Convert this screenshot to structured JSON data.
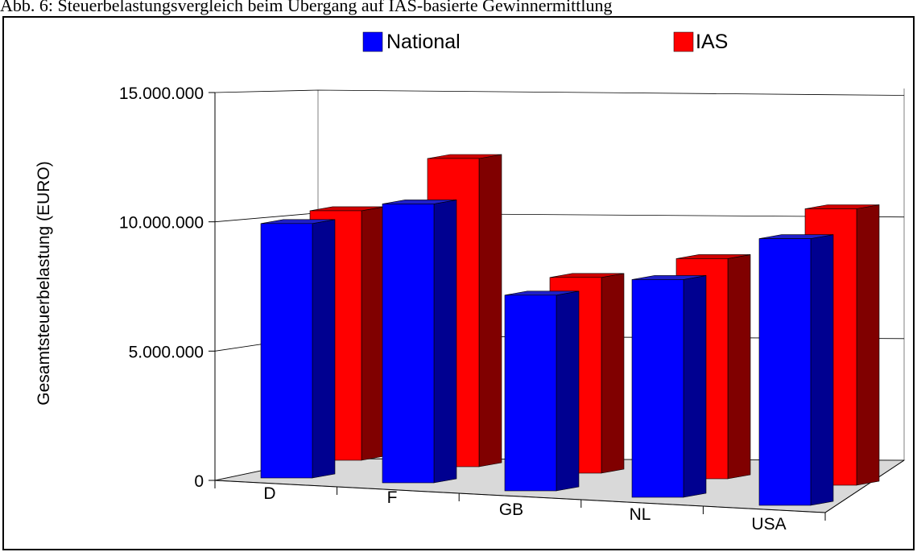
{
  "caption": "Abb. 6: Steuerbelastungsvergleich beim Übergang auf IAS-basierte Gewinnermittlung",
  "chart_data": {
    "type": "bar",
    "title": "",
    "xlabel": "",
    "ylabel": "Gesamtsteuerbelastung (EURO)",
    "ylim": [
      0,
      15000000
    ],
    "yticks": [
      0,
      5000000,
      10000000,
      15000000
    ],
    "ytick_labels": [
      "0",
      "5.000.000",
      "10.000.000",
      "15.000.000"
    ],
    "categories": [
      "D",
      "F",
      "GB",
      "NL",
      "USA"
    ],
    "series": [
      {
        "name": "National",
        "values": [
          10400000,
          11400000,
          8000000,
          8900000,
          10900000
        ],
        "color": "#0000ff"
      },
      {
        "name": "IAS",
        "values": [
          10200000,
          12600000,
          8000000,
          9000000,
          11300000
        ],
        "color": "#ff0000"
      }
    ],
    "legend": "top",
    "grid": true,
    "three_d": true
  }
}
